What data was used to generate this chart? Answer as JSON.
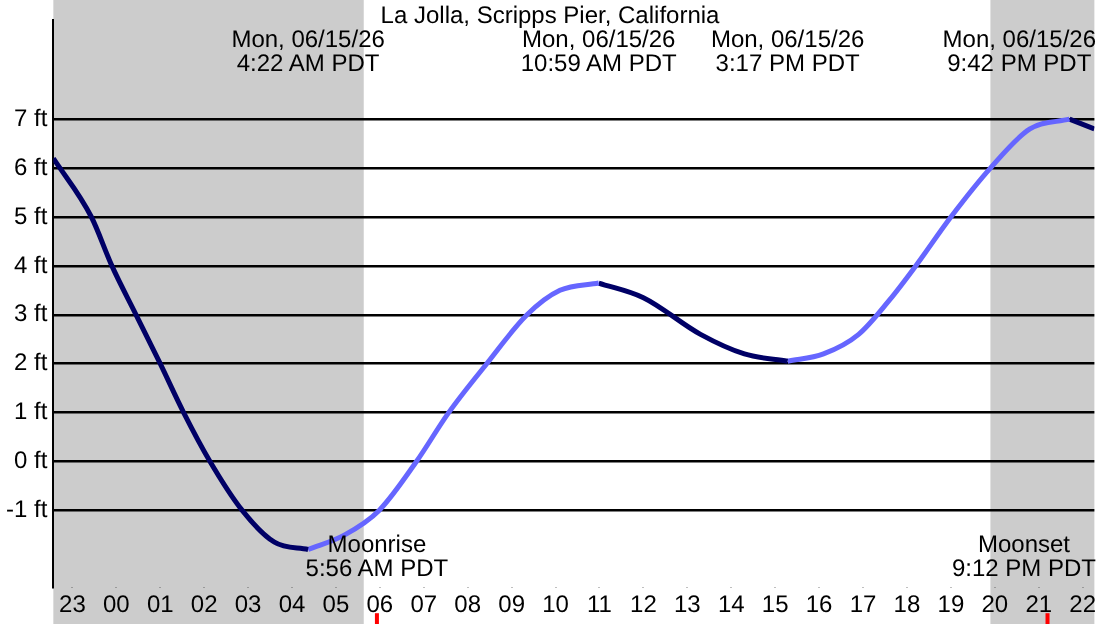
{
  "chart_data": {
    "type": "line",
    "title": "La Jolla, Scripps Pier, California",
    "series": [
      {
        "color": "#000066",
        "x": [
          "--06-14T22:34",
          "--06-14T23:26",
          "--06-14T23:54",
          "--06-15T00:27",
          "--06-15T01:00",
          "--06-15T01:32",
          "--06-15T02:08",
          "--06-15T02:52",
          "--06-15T03:36",
          "--06-15T04:22"
        ],
        "values": [
          6.2,
          5,
          4,
          3,
          2,
          1,
          0,
          -1,
          -1.65,
          -1.8
        ]
      },
      {
        "color": "#6666ff",
        "x": [
          "--06-15T04:22",
          "--06-15T05:12",
          "--06-15T05:59",
          "--06-15T06:50",
          "--06-15T07:34",
          "--06-15T08:26",
          "--06-15T09:21",
          "--06-15T10:06",
          "--06-15T10:59"
        ],
        "values": [
          -1.8,
          -1.5,
          -1,
          0,
          1,
          2,
          3,
          3.5,
          3.65
        ]
      },
      {
        "color": "#000066",
        "x": [
          "--06-15T10:59",
          "--06-15T12:00",
          "--06-15T13:18",
          "--06-15T14:18",
          "--06-15T15:17"
        ],
        "values": [
          3.65,
          3.35,
          2.6,
          2.2,
          2.05
        ]
      },
      {
        "color": "#6666ff",
        "x": [
          "--06-15T15:17",
          "--06-15T16:06",
          "--06-15T16:54",
          "--06-15T17:36",
          "--06-15T18:12",
          "--06-15T19:00",
          "--06-15T19:54",
          "--06-15T20:48",
          "--06-15T21:42"
        ],
        "values": [
          2.05,
          2.2,
          2.6,
          3.3,
          4,
          5,
          6,
          6.8,
          7.0
        ]
      },
      {
        "color": "#000066",
        "x": [
          "--06-15T21:42",
          "--06-15T22:16"
        ],
        "values": [
          7.0,
          6.8
        ]
      }
    ],
    "xlim": [
      "--06-14T22:34",
      "--06-15T22:16"
    ],
    "xticks": [
      {
        "value": "--06-14T23:00",
        "label": "23"
      },
      {
        "value": "--06-15T00:00",
        "label": "00"
      },
      {
        "value": "--06-15T01:00",
        "label": "01"
      },
      {
        "value": "--06-15T02:00",
        "label": "02"
      },
      {
        "value": "--06-15T03:00",
        "label": "03"
      },
      {
        "value": "--06-15T04:00",
        "label": "04"
      },
      {
        "value": "--06-15T05:00",
        "label": "05"
      },
      {
        "value": "--06-15T06:00",
        "label": "06"
      },
      {
        "value": "--06-15T07:00",
        "label": "07"
      },
      {
        "value": "--06-15T08:00",
        "label": "08"
      },
      {
        "value": "--06-15T09:00",
        "label": "09"
      },
      {
        "value": "--06-15T10:00",
        "label": "10"
      },
      {
        "value": "--06-15T11:00",
        "label": "11"
      },
      {
        "value": "--06-15T12:00",
        "label": "12"
      },
      {
        "value": "--06-15T13:00",
        "label": "13"
      },
      {
        "value": "--06-15T14:00",
        "label": "14"
      },
      {
        "value": "--06-15T15:00",
        "label": "15"
      },
      {
        "value": "--06-15T16:00",
        "label": "16"
      },
      {
        "value": "--06-15T17:00",
        "label": "17"
      },
      {
        "value": "--06-15T18:00",
        "label": "18"
      },
      {
        "value": "--06-15T19:00",
        "label": "19"
      },
      {
        "value": "--06-15T20:00",
        "label": "20"
      },
      {
        "value": "--06-15T21:00",
        "label": "21"
      },
      {
        "value": "--06-15T22:00",
        "label": "22"
      }
    ],
    "ylim": [
      -2.57,
      9.02
    ],
    "yticks": [
      {
        "value": -1,
        "label": "-1 ft"
      },
      {
        "value": 0,
        "label": "0 ft"
      },
      {
        "value": 1,
        "label": "1 ft"
      },
      {
        "value": 2,
        "label": "2 ft"
      },
      {
        "value": 3,
        "label": "3 ft"
      },
      {
        "value": 4,
        "label": "4 ft"
      },
      {
        "value": 5,
        "label": "5 ft"
      },
      {
        "value": 6,
        "label": "6 ft"
      },
      {
        "value": 7,
        "label": "7 ft"
      }
    ],
    "grid": "y",
    "bands": [
      {
        "axis": "x",
        "from": "--06-14T22:34",
        "to": "--06-15T05:38",
        "color": "#cccccc"
      },
      {
        "axis": "x",
        "from": "--06-15T19:54",
        "to": "--06-15T22:16",
        "color": "#cccccc"
      }
    ],
    "ref_lines": [
      {
        "axis": "x",
        "value": "--06-15T05:56",
        "label": "Moonrise\n5:56 AM PDT",
        "color": "#ff0000"
      },
      {
        "axis": "x",
        "value": "--06-15T21:12",
        "label": "Moonset\n9:12 PM PDT",
        "color": "#ff0000"
      }
    ],
    "annotations": [
      "Mon, 06/15/26\n4:22 AM PDT",
      "Mon, 06/15/26\n10:59 AM PDT",
      "Mon, 06/15/26\n3:17 PM PDT",
      "Mon, 06/15/26\n9:42 PM PDT"
    ],
    "legend": false
  }
}
